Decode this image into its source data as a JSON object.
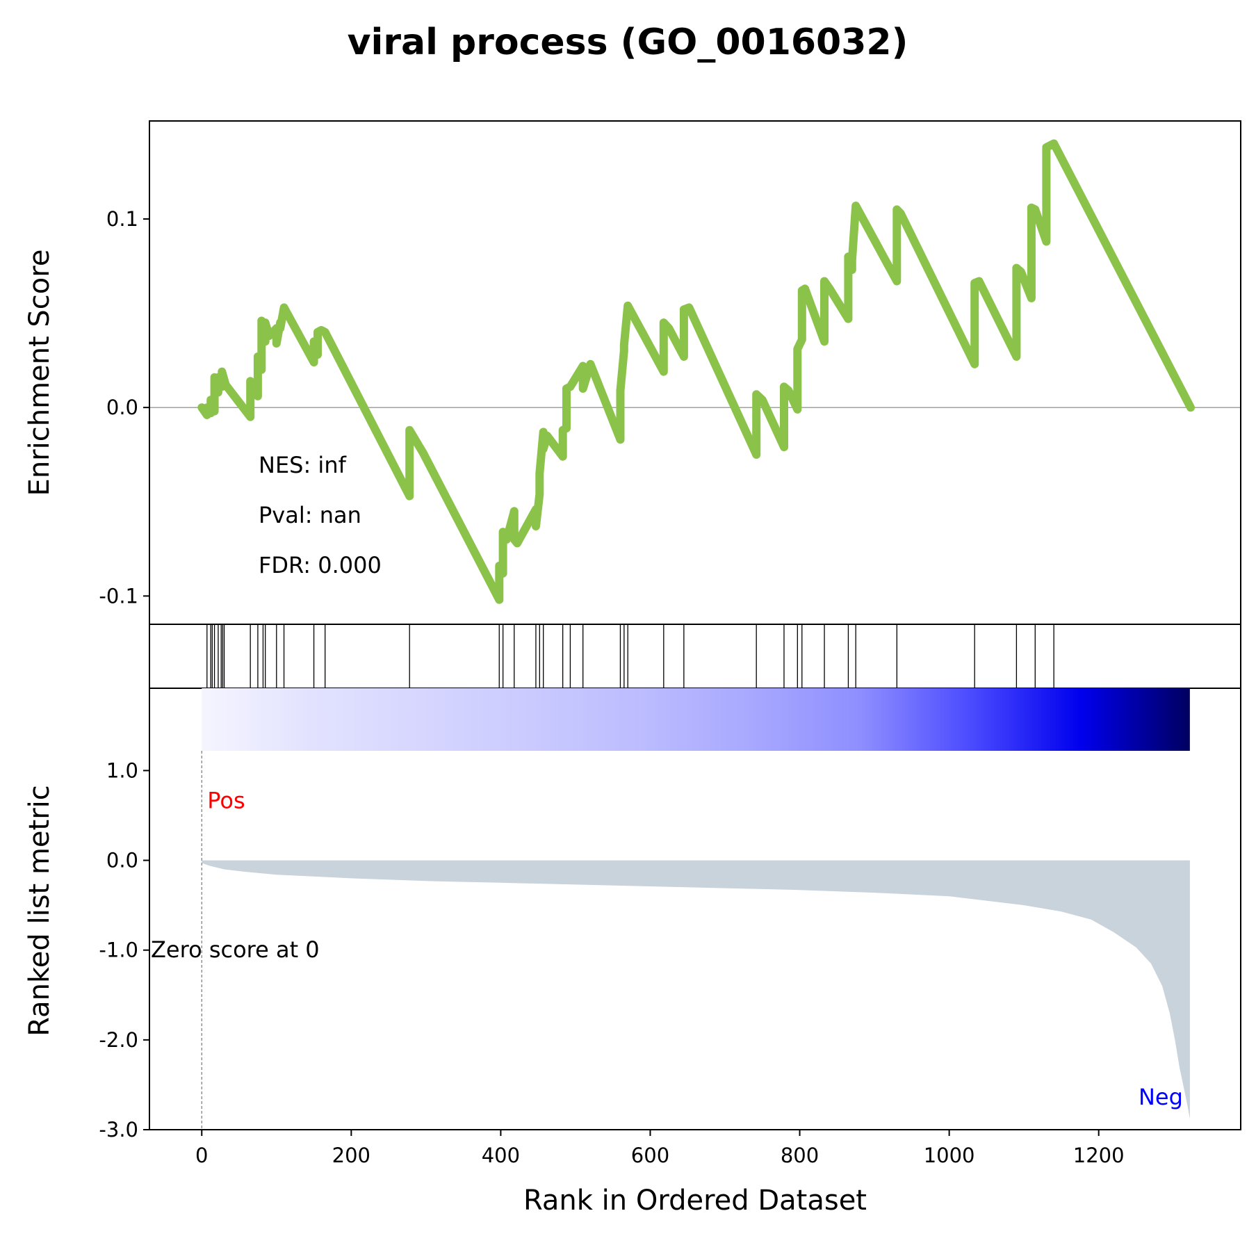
{
  "chart_data": {
    "type": "line",
    "title": "viral process (GO_0016032)",
    "xlabel": "Rank in Ordered Dataset",
    "xlim": [
      -70,
      1390
    ],
    "x_ticks": [
      0,
      200,
      400,
      600,
      800,
      1000,
      1200
    ],
    "x_tick_labels": [
      "0",
      "200",
      "400",
      "600",
      "800",
      "1000",
      "1200"
    ],
    "panels": {
      "enrichment": {
        "ylabel": "Enrichment Score",
        "ylim": [
          -0.115,
          0.152
        ],
        "y_ticks": [
          -0.1,
          0.0,
          0.1
        ],
        "y_tick_labels": [
          "-0.1",
          "0.0",
          "0.1"
        ],
        "line_color": "#8bc34a",
        "zero_line": true,
        "annotations": [
          "NES: inf",
          "Pval: nan",
          "FDR: 0.000"
        ],
        "series": [
          {
            "x": [
              0,
              7,
              7,
              12,
              12,
              17,
              17,
              22,
              22,
              27,
              27,
              32,
              65,
              65,
              75,
              75,
              80,
              80,
              85,
              85,
              90,
              100,
              100,
              105,
              105,
              110,
              150,
              150,
              155,
              155,
              160,
              165,
              278,
              278,
              290,
              296,
              398,
              398,
              403,
              403,
              408,
              418,
              418,
              422,
              447,
              447,
              452,
              452,
              457,
              457,
              462,
              483,
              483,
              488,
              488,
              493,
              510,
              510,
              520,
              560,
              560,
              565,
              565,
              570,
              618,
              618,
              625,
              645,
              645,
              652,
              742,
              742,
              750,
              779,
              779,
              785,
              797,
              797,
              803,
              803,
              807,
              833,
              833,
              840,
              865,
              865,
              870,
              870,
              875,
              930,
              930,
              935,
              1034,
              1034,
              1040,
              1090,
              1090,
              1096,
              1110,
              1110,
              1115,
              1130,
              1130,
              1140,
              1323
            ],
            "y": [
              0,
              -0.004,
              0,
              -0.003,
              0.004,
              -0.002,
              0.016,
              0.008,
              0.016,
              0.011,
              0.019,
              0.012,
              -0.005,
              0.014,
              0.006,
              0.027,
              0.02,
              0.046,
              0.035,
              0.045,
              0.038,
              0.042,
              0.034,
              0.045,
              0.042,
              0.053,
              0.024,
              0.035,
              0.028,
              0.04,
              0.041,
              0.04,
              -0.047,
              -0.012,
              -0.02,
              -0.024,
              -0.102,
              -0.084,
              -0.088,
              -0.066,
              -0.07,
              -0.055,
              -0.07,
              -0.072,
              -0.054,
              -0.063,
              -0.046,
              -0.035,
              -0.013,
              -0.022,
              -0.015,
              -0.026,
              -0.012,
              -0.011,
              0.01,
              0.011,
              0.022,
              0.01,
              0.023,
              -0.017,
              0.009,
              0.03,
              0.033,
              0.054,
              0.019,
              0.045,
              0.042,
              0.027,
              0.052,
              0.053,
              -0.025,
              0.007,
              0.004,
              -0.021,
              0.011,
              0.009,
              -0.001,
              0.031,
              0.036,
              0.062,
              0.063,
              0.035,
              0.067,
              0.063,
              0.047,
              0.08,
              0.073,
              0.078,
              0.107,
              0.067,
              0.105,
              0.103,
              0.023,
              0.066,
              0.067,
              0.027,
              0.074,
              0.072,
              0.058,
              0.106,
              0.105,
              0.088,
              0.138,
              0.14,
              0
            ]
          }
        ]
      },
      "hits": {
        "positions": [
          7,
          12,
          14,
          17,
          22,
          26,
          28,
          30,
          65,
          75,
          82,
          85,
          100,
          110,
          150,
          165,
          278,
          398,
          403,
          418,
          447,
          452,
          457,
          483,
          493,
          510,
          560,
          565,
          570,
          618,
          645,
          742,
          779,
          797,
          803,
          833,
          865,
          875,
          930,
          1034,
          1090,
          1115,
          1140
        ]
      },
      "ranked_metric": {
        "ylabel": "Ranked list metric",
        "ylim": [
          -3.0,
          1.22
        ],
        "y_ticks": [
          1.0,
          0.0,
          -1.0,
          -2.0,
          -3.0
        ],
        "y_tick_labels": [
          "1.0",
          "0.0",
          "-1.0",
          "-2.0",
          "-3.0"
        ],
        "fill_color": "#c8d3dc",
        "labels": {
          "pos": "Pos",
          "neg": "Neg",
          "zero": "Zero score at 0"
        },
        "label_colors": {
          "pos": "#ff0000",
          "neg": "#0000ff"
        },
        "zero_score_rank": 0,
        "curve": {
          "x": [
            0,
            10,
            30,
            60,
            100,
            150,
            200,
            300,
            400,
            500,
            600,
            700,
            800,
            900,
            1000,
            1100,
            1150,
            1190,
            1220,
            1250,
            1270,
            1285,
            1295,
            1302,
            1308,
            1313,
            1318,
            1322
          ],
          "y": [
            -0.03,
            -0.06,
            -0.1,
            -0.13,
            -0.16,
            -0.18,
            -0.2,
            -0.23,
            -0.25,
            -0.27,
            -0.29,
            -0.31,
            -0.33,
            -0.36,
            -0.4,
            -0.5,
            -0.57,
            -0.66,
            -0.8,
            -0.97,
            -1.15,
            -1.4,
            -1.7,
            -2.0,
            -2.3,
            -2.5,
            -2.7,
            -2.88
          ]
        },
        "gradient_stops": [
          "#f5f5ff",
          "#e2e2ff",
          "#d6d6ff",
          "#cacaff",
          "#bcbcff",
          "#a8a8ff",
          "#8e8eff",
          "#4b4bff",
          "#0000ee",
          "#000060"
        ]
      }
    }
  }
}
